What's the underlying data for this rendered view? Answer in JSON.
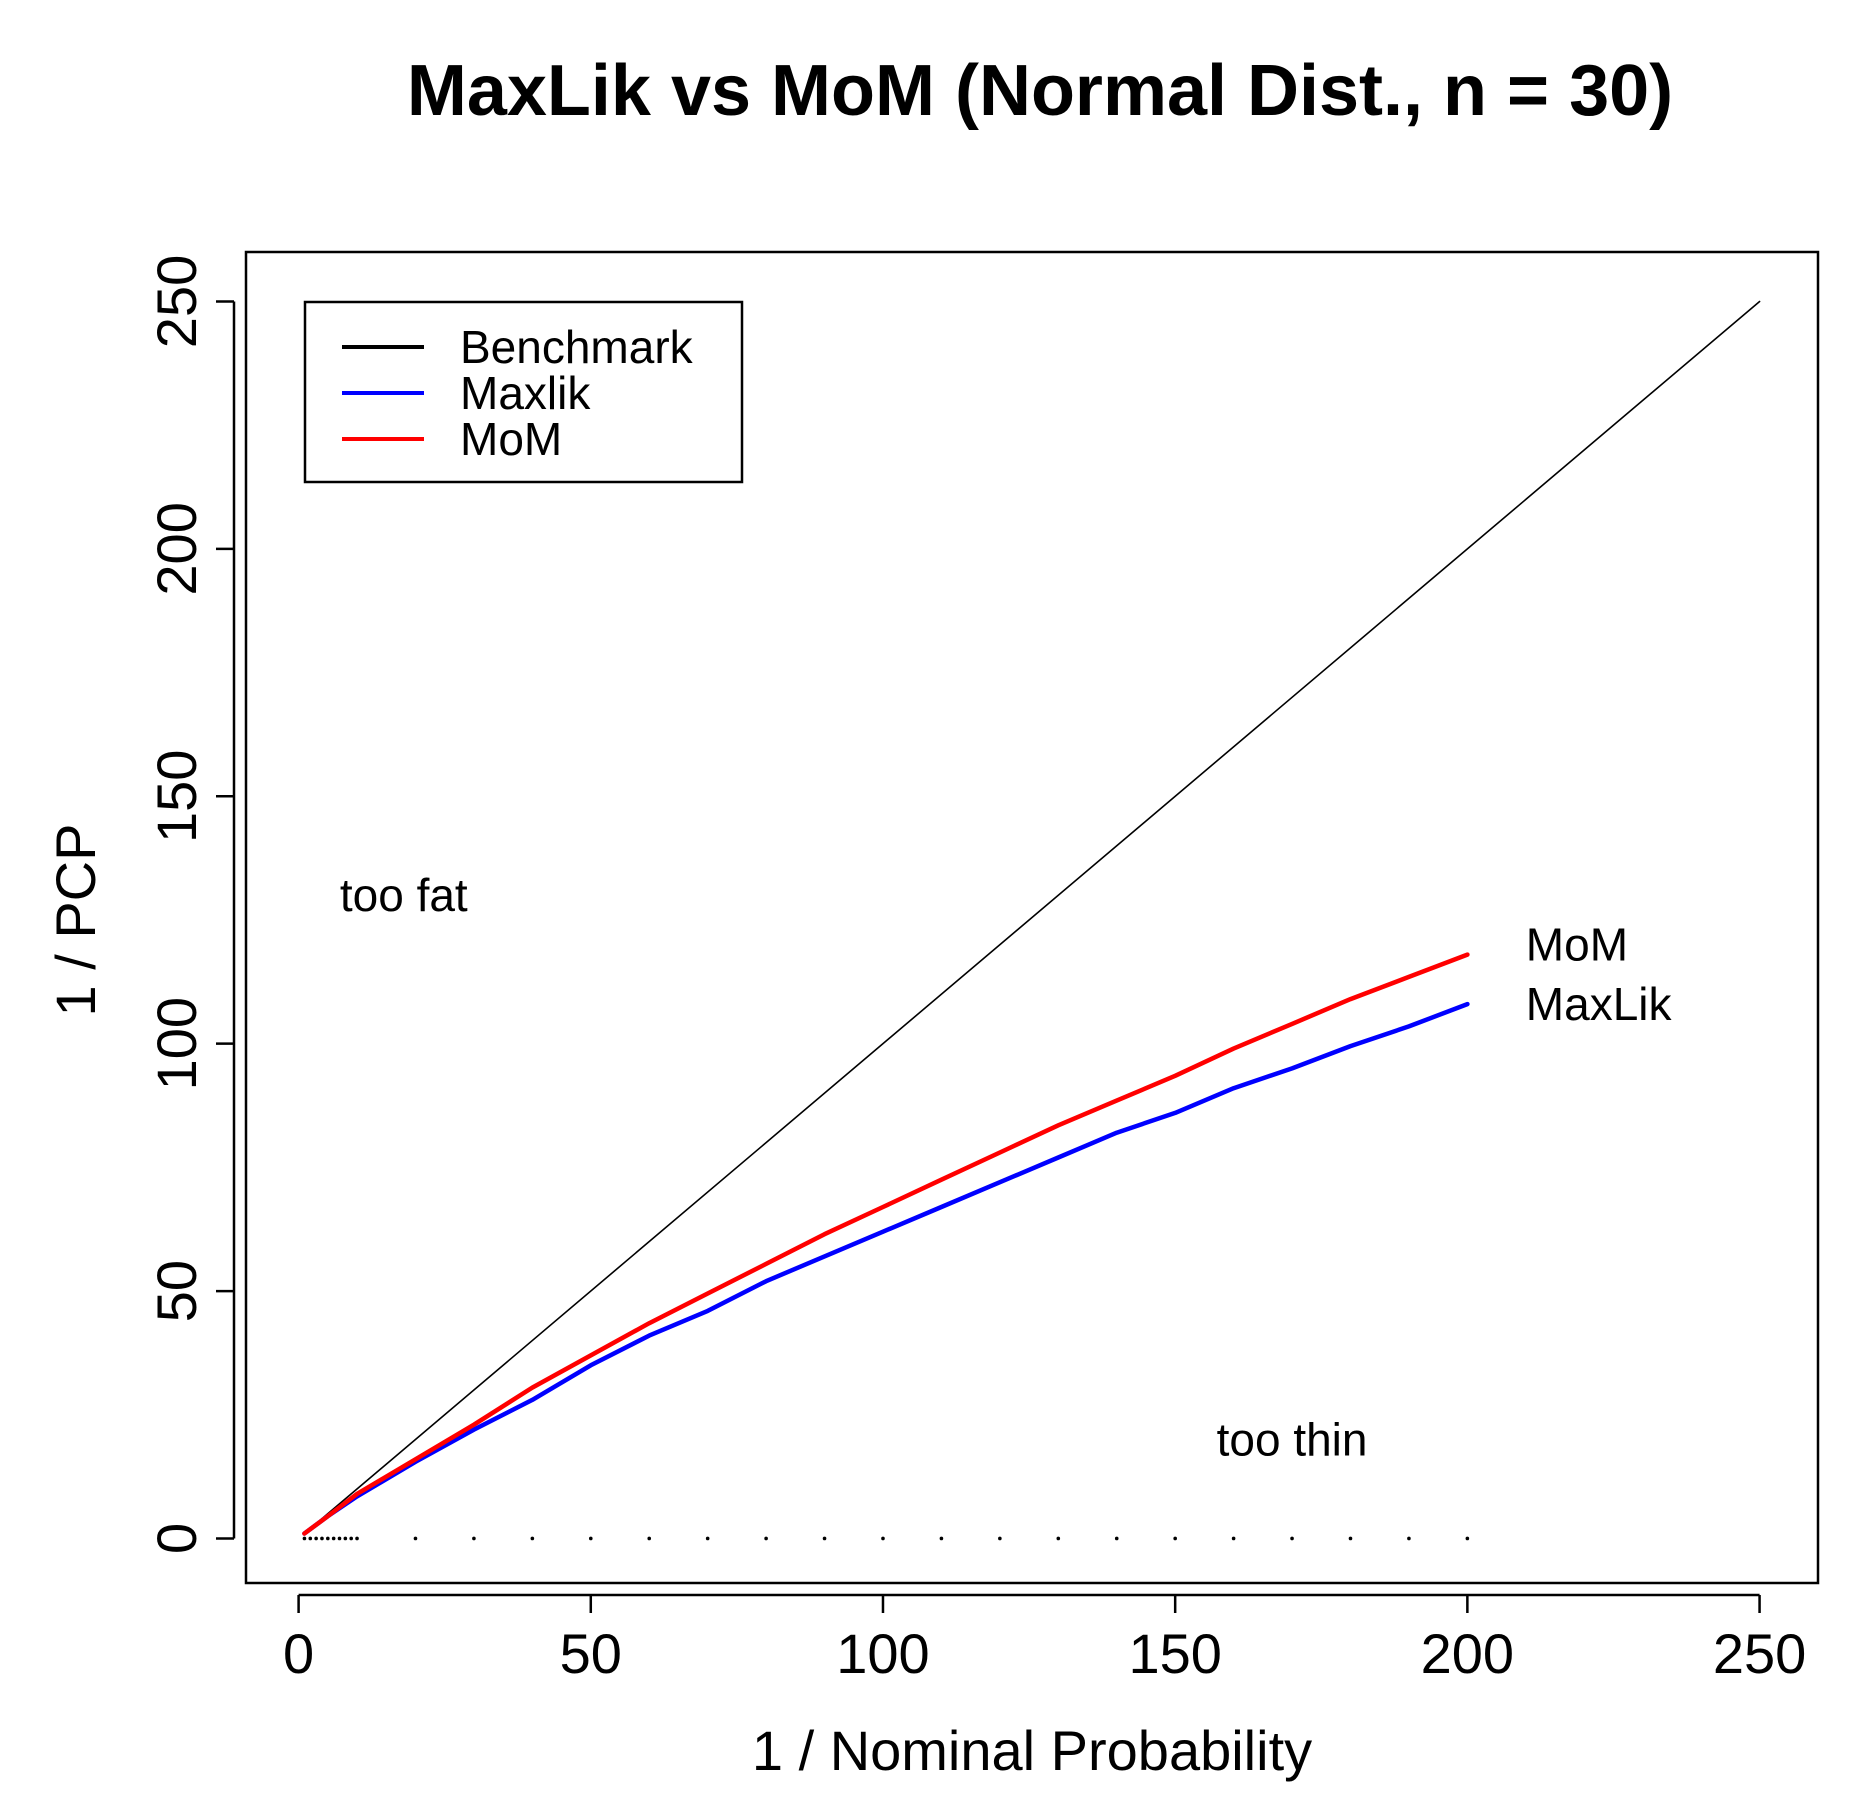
{
  "chart_data": {
    "type": "line",
    "title": "MaxLik vs MoM (Normal Dist., n = 30)",
    "xlabel": "1 / Nominal Probability",
    "ylabel": "1 / PCP",
    "xlim": [
      -9,
      260
    ],
    "ylim": [
      -9,
      260
    ],
    "x_ticks": [
      0,
      50,
      100,
      150,
      200,
      250
    ],
    "y_ticks": [
      0,
      50,
      100,
      150,
      200,
      250
    ],
    "grid": false,
    "legend_position": "top-left",
    "series": [
      {
        "name": "Benchmark",
        "color": "#000000",
        "x": [
          1,
          250
        ],
        "y": [
          1,
          250
        ]
      },
      {
        "name": "Maxlik",
        "color": "#0000ff",
        "x": [
          1,
          5,
          10,
          20,
          30,
          40,
          50,
          60,
          70,
          80,
          90,
          100,
          110,
          120,
          130,
          140,
          150,
          160,
          170,
          180,
          190,
          200
        ],
        "y": [
          1,
          4.5,
          8.5,
          15.5,
          22,
          28,
          35,
          41,
          46,
          52,
          57,
          62,
          67,
          72,
          77,
          82,
          86,
          91,
          95,
          99.5,
          103.5,
          108
        ]
      },
      {
        "name": "MoM",
        "color": "#ff0000",
        "x": [
          1,
          5,
          10,
          20,
          30,
          40,
          50,
          60,
          70,
          80,
          90,
          100,
          110,
          120,
          130,
          140,
          150,
          160,
          170,
          180,
          190,
          200
        ],
        "y": [
          1,
          4.5,
          9,
          16,
          23,
          30.5,
          37,
          43.5,
          49.5,
          55.5,
          61.5,
          67,
          72.5,
          78,
          83.5,
          88.5,
          93.5,
          99,
          104,
          109,
          113.5,
          118
        ]
      }
    ],
    "annotations": [
      {
        "text": "too fat",
        "x": 18,
        "y": 130
      },
      {
        "text": "too thin",
        "x": 170,
        "y": 20
      },
      {
        "text": "MoM",
        "x": 210,
        "y": 120
      },
      {
        "text": "MaxLik",
        "x": 210,
        "y": 108
      }
    ],
    "baseline_markers_x": [
      1,
      2,
      3,
      4,
      5,
      6,
      7,
      8,
      9,
      10,
      20,
      30,
      40,
      50,
      60,
      70,
      80,
      90,
      100,
      110,
      120,
      130,
      140,
      150,
      160,
      170,
      180,
      190,
      200
    ]
  }
}
